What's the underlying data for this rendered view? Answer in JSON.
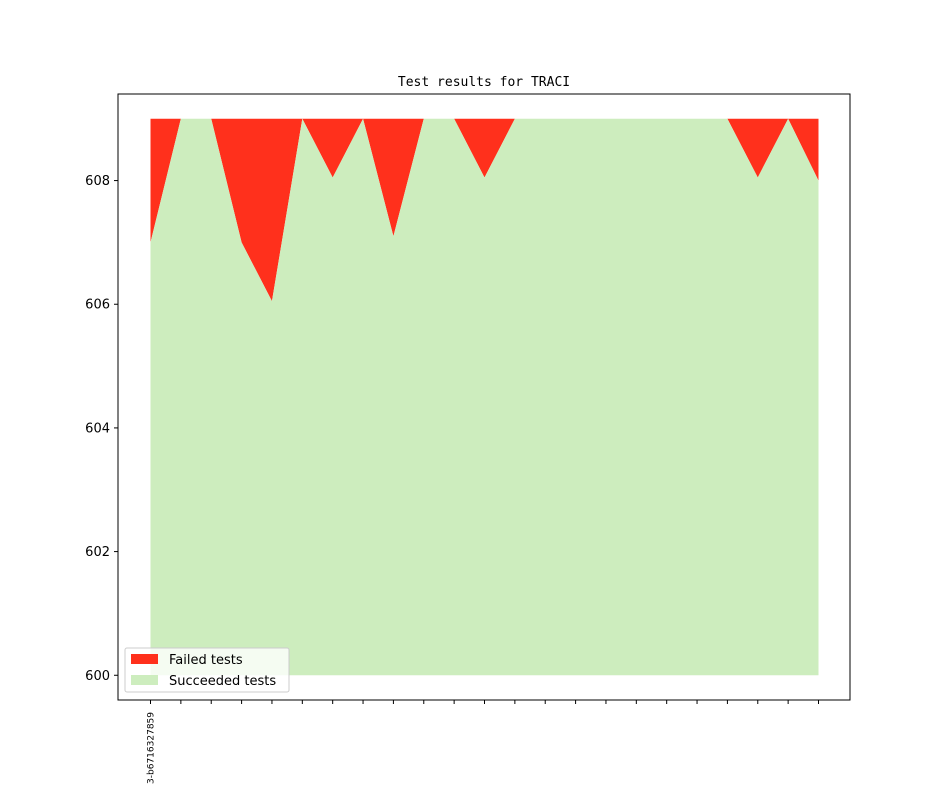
{
  "chart_data": {
    "type": "area",
    "title": "Test results for TRACI",
    "xlabel": "",
    "ylabel": "",
    "x_tick_labels": [
      "3-b6716327859"
    ],
    "ylim": [
      599.6,
      609.4
    ],
    "yticks": [
      600,
      602,
      604,
      606,
      608
    ],
    "x": [
      0,
      1,
      2,
      3,
      4,
      5,
      6,
      7,
      8,
      9,
      10,
      11,
      12,
      13,
      14,
      15,
      16,
      17,
      18,
      19,
      20,
      21,
      22
    ],
    "base": 600,
    "total": [
      609,
      609,
      609,
      609,
      609,
      609,
      609,
      609,
      609,
      609,
      609,
      609,
      609,
      609,
      609,
      609,
      609,
      609,
      609,
      609,
      609,
      609,
      609
    ],
    "series": [
      {
        "name": "Succeeded tests",
        "color": "#cdedbe",
        "values": [
          607,
          609,
          609,
          607,
          606.05,
          609,
          608.05,
          609,
          607.1,
          609,
          609,
          608.05,
          609,
          609,
          609,
          609,
          609,
          609,
          609,
          609,
          608.05,
          609,
          608
        ]
      },
      {
        "name": "Failed tests",
        "color": "#ff301c",
        "values": [
          2,
          0,
          0,
          2,
          2.95,
          0,
          0.95,
          0,
          1.9,
          0,
          0,
          0.95,
          0,
          0,
          0,
          0,
          0,
          0,
          0,
          0,
          0.95,
          0,
          1
        ]
      }
    ],
    "legend": {
      "placement": "lower-left",
      "entries": [
        "Failed tests",
        "Succeeded tests"
      ]
    },
    "grid": false
  }
}
